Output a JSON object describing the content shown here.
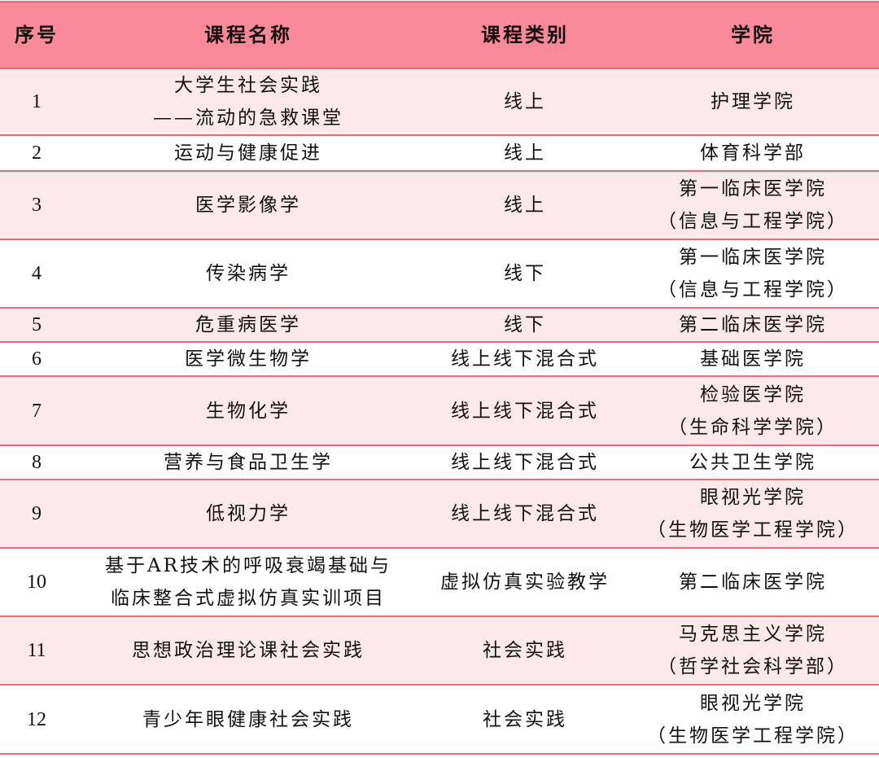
{
  "colors": {
    "header_bg": "#fb8a98",
    "alt_row_bg": "#fde9ec",
    "border": "#ec6b7a"
  },
  "headers": [
    "序号",
    "课程名称",
    "课程类别",
    "学院"
  ],
  "rows": [
    {
      "no": "1",
      "name": [
        "大学生社会实践",
        "——流动的急救课堂"
      ],
      "type": "线上",
      "college": [
        "护理学院"
      ]
    },
    {
      "no": "2",
      "name": [
        "运动与健康促进"
      ],
      "type": "线上",
      "college": [
        "体育科学部"
      ]
    },
    {
      "no": "3",
      "name": [
        "医学影像学"
      ],
      "type": "线上",
      "college": [
        "第一临床医学院",
        "（信息与工程学院）"
      ]
    },
    {
      "no": "4",
      "name": [
        "传染病学"
      ],
      "type": "线下",
      "college": [
        "第一临床医学院",
        "（信息与工程学院）"
      ]
    },
    {
      "no": "5",
      "name": [
        "危重病医学"
      ],
      "type": "线下",
      "college": [
        "第二临床医学院"
      ]
    },
    {
      "no": "6",
      "name": [
        "医学微生物学"
      ],
      "type": "线上线下混合式",
      "college": [
        "基础医学院"
      ]
    },
    {
      "no": "7",
      "name": [
        "生物化学"
      ],
      "type": "线上线下混合式",
      "college": [
        "检验医学院",
        "（生命科学学院）"
      ]
    },
    {
      "no": "8",
      "name": [
        "营养与食品卫生学"
      ],
      "type": "线上线下混合式",
      "college": [
        "公共卫生学院"
      ]
    },
    {
      "no": "9",
      "name": [
        "低视力学"
      ],
      "type": "线上线下混合式",
      "college": [
        "眼视光学院",
        "（生物医学工程学院）"
      ]
    },
    {
      "no": "10",
      "name": [
        "基于AR技术的呼吸衰竭基础与",
        "临床整合式虚拟仿真实训项目"
      ],
      "type": "虚拟仿真实验教学",
      "college": [
        "第二临床医学院"
      ]
    },
    {
      "no": "11",
      "name": [
        "思想政治理论课社会实践"
      ],
      "type": "社会实践",
      "college": [
        "马克思主义学院",
        "（哲学社会科学部）"
      ]
    },
    {
      "no": "12",
      "name": [
        "青少年眼健康社会实践"
      ],
      "type": "社会实践",
      "college": [
        "眼视光学院",
        "（生物医学工程学院）"
      ]
    }
  ]
}
